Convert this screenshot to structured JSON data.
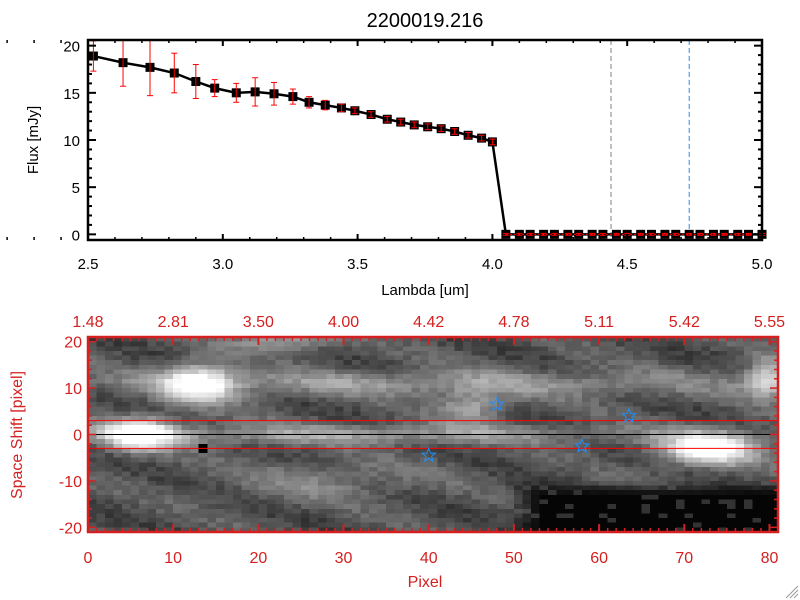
{
  "chart_data": [
    {
      "type": "line",
      "title": "2200019.216",
      "xlabel": "Lambda [um]",
      "ylabel": "Flux [mJy]",
      "xlim": [
        2.5,
        5.0
      ],
      "ylim": [
        -0.6,
        20.6
      ],
      "xticks": [
        "2.5",
        "3.0",
        "3.5",
        "4.0",
        "4.5",
        "5.0"
      ],
      "xtick_values": [
        2.5,
        3.0,
        3.5,
        4.0,
        4.5,
        5.0
      ],
      "yticks": [
        "0",
        "5",
        "10",
        "15",
        "20"
      ],
      "ytick_values": [
        0,
        5,
        10,
        15,
        20
      ],
      "series": [
        {
          "name": "flux",
          "color": "#000000",
          "error_color": "#ff0000",
          "x": [
            2.52,
            2.63,
            2.73,
            2.82,
            2.9,
            2.97,
            3.05,
            3.12,
            3.19,
            3.26,
            3.32,
            3.38,
            3.44,
            3.49,
            3.55,
            3.61,
            3.66,
            3.71,
            3.76,
            3.81,
            3.86,
            3.91,
            3.96,
            4.0,
            4.05,
            4.1,
            4.14,
            4.19,
            4.23,
            4.28,
            4.32,
            4.37,
            4.41,
            4.46,
            4.5,
            4.55,
            4.59,
            4.64,
            4.68,
            4.73,
            4.77,
            4.82,
            4.86,
            4.91,
            4.95,
            5.0
          ],
          "y": [
            18.9,
            18.2,
            17.7,
            17.1,
            16.2,
            15.5,
            15.0,
            15.1,
            14.9,
            14.6,
            14.0,
            13.7,
            13.4,
            13.1,
            12.7,
            12.2,
            11.9,
            11.6,
            11.4,
            11.2,
            10.9,
            10.5,
            10.2,
            9.8,
            0,
            0,
            0,
            0,
            0,
            0,
            0,
            0,
            0,
            0,
            0,
            0,
            0,
            0,
            0,
            0,
            0,
            0,
            0,
            0,
            0,
            0
          ],
          "err": [
            1.6,
            2.5,
            3.0,
            2.1,
            1.8,
            0.9,
            1.0,
            1.5,
            1.2,
            0.8,
            0.6,
            0.5,
            0.4,
            0.3,
            0.3,
            0.3,
            0.3,
            0.3,
            0.3,
            0.3,
            0.3,
            0.3,
            0.3,
            0.3,
            0.1,
            0.1,
            0.1,
            0.1,
            0.1,
            0.1,
            0.1,
            0.1,
            0.1,
            0.1,
            0.1,
            0.1,
            0.1,
            0.1,
            0.1,
            0.1,
            0.1,
            0.1,
            0.1,
            0.1,
            0.1,
            0.1
          ]
        }
      ],
      "vlines": [
        {
          "x": 4.44,
          "color": "#808080",
          "style": "dashed"
        },
        {
          "x": 4.73,
          "color": "#1e90ff",
          "style": "dashed"
        }
      ],
      "hlines": [
        {
          "y": 0,
          "from_x": 4.05,
          "color": "#ff0000",
          "style": "dotted"
        }
      ]
    },
    {
      "type": "heatmap",
      "xlabel": "Pixel",
      "ylabel": "Space Shift [pixel]",
      "xlim": [
        0,
        81
      ],
      "ylim": [
        -21,
        21
      ],
      "xticks": [
        "0",
        "10",
        "20",
        "30",
        "40",
        "50",
        "60",
        "70",
        "80"
      ],
      "xtick_values": [
        0,
        10,
        20,
        30,
        40,
        50,
        60,
        70,
        80
      ],
      "yticks": [
        "20",
        "10",
        "0",
        "-10",
        "-20"
      ],
      "ytick_values": [
        20,
        10,
        0,
        -10,
        -20
      ],
      "top_ticks": [
        "1.48",
        "2.81",
        "3.50",
        "4.00",
        "4.42",
        "4.78",
        "5.11",
        "5.42",
        "5.55"
      ],
      "axis_color": "#d42020",
      "colormap": "grayscale",
      "features": [
        {
          "x": 6,
          "y": 0,
          "sx": 3,
          "sy": 2.5,
          "amp": 0.75
        },
        {
          "x": 30,
          "y": 0,
          "sx": 25,
          "sy": 1.6,
          "amp": 0.3
        },
        {
          "x": 13,
          "y": 11,
          "sx": 3,
          "sy": 3,
          "amp": 0.7
        },
        {
          "x": 40,
          "y": 11,
          "sx": 30,
          "sy": 2,
          "amp": 0.28
        },
        {
          "x": 45,
          "y": 6,
          "sx": 2.5,
          "sy": 2.5,
          "amp": 0.35
        },
        {
          "x": 73,
          "y": -3,
          "sx": 4,
          "sy": 2.5,
          "amp": 0.8
        },
        {
          "x": 28,
          "y": -10,
          "sx": 8,
          "sy": 3,
          "amp": 0.18
        },
        {
          "x": 80,
          "y": 12,
          "sx": 2,
          "sy": 3,
          "amp": 0.5
        },
        {
          "x": 23,
          "y": 20,
          "sx": 4,
          "sy": 1.5,
          "amp": 0.35
        }
      ],
      "dark_region": {
        "x_from": 49,
        "x_to": 81,
        "y_from": -21,
        "y_to": -10
      },
      "bad_pixel": {
        "x": 13.5,
        "y": -3
      },
      "stars": [
        {
          "x": 48,
          "y": 6.5
        },
        {
          "x": 63.5,
          "y": 4
        },
        {
          "x": 40,
          "y": -4.5
        },
        {
          "x": 58,
          "y": -2.5
        }
      ],
      "star_color": "#1e90ff",
      "hlines": [
        {
          "y": 3,
          "color": "#ff0000"
        },
        {
          "y": -3,
          "color": "#ff0000"
        },
        {
          "y": 0,
          "color": "#000000"
        }
      ]
    }
  ]
}
